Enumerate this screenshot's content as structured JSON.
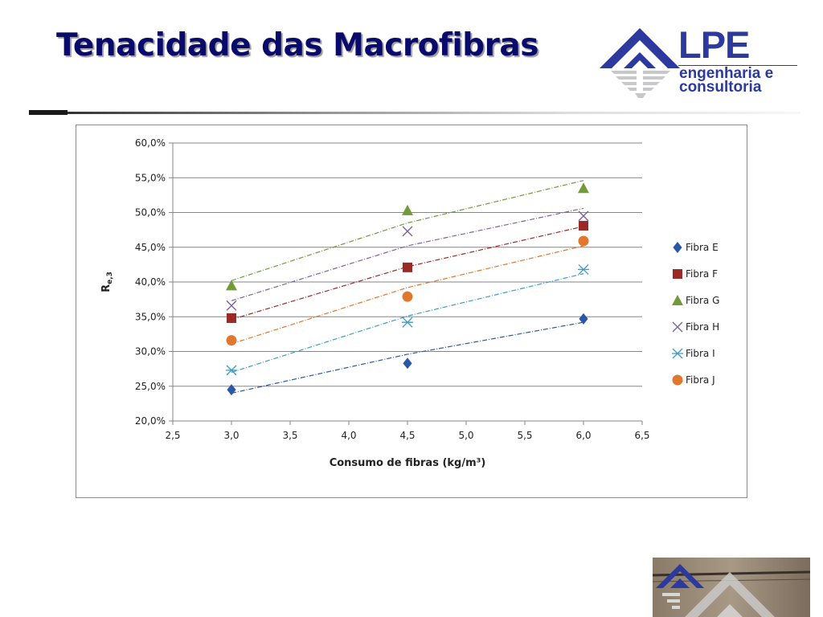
{
  "slide": {
    "title": "Tenacidade das Macrofibras"
  },
  "logo": {
    "brand": "LPE",
    "line1": "engenharia e",
    "line2": "consultoria"
  },
  "chart_data": {
    "type": "scatter",
    "xlabel": "Consumo de fibras (kg/m³)",
    "ylabel_main": "R",
    "ylabel_sub": "e,3",
    "xlim": [
      2.5,
      6.5
    ],
    "ylim": [
      0.2,
      0.6
    ],
    "xticks": [
      "2,5",
      "3,0",
      "3,5",
      "4,0",
      "4,5",
      "5,0",
      "5,5",
      "6,0",
      "6,5"
    ],
    "yticks": [
      "20,0%",
      "25,0%",
      "30,0%",
      "35,0%",
      "40,0%",
      "45,0%",
      "50,0%",
      "55,0%",
      "60,0%"
    ],
    "grid": "horizontal",
    "legend": "right",
    "trendline": "dashed",
    "x": [
      3.0,
      4.5,
      6.0
    ],
    "series": [
      {
        "name": "Fibra E",
        "marker": "diamond",
        "color": "#2a58a6",
        "values": [
          0.245,
          0.283,
          0.347
        ],
        "trend": [
          0.24,
          0.296,
          0.342
        ]
      },
      {
        "name": "Fibra F",
        "marker": "square",
        "color": "#9b2a26",
        "values": [
          0.348,
          0.421,
          0.481
        ],
        "trend": [
          0.346,
          0.422,
          0.48
        ]
      },
      {
        "name": "Fibra G",
        "marker": "triangle",
        "color": "#72993a",
        "values": [
          0.395,
          0.503,
          0.535
        ],
        "trend": [
          0.402,
          0.485,
          0.546
        ]
      },
      {
        "name": "Fibra H",
        "marker": "x",
        "color": "#7b62a0",
        "values": [
          0.366,
          0.473,
          0.495
        ],
        "trend": [
          0.373,
          0.452,
          0.506
        ]
      },
      {
        "name": "Fibra I",
        "marker": "star",
        "color": "#3d9cc4",
        "values": [
          0.273,
          0.342,
          0.418
        ],
        "trend": [
          0.27,
          0.351,
          0.412
        ]
      },
      {
        "name": "Fibra J",
        "marker": "circle",
        "color": "#e0772c",
        "values": [
          0.316,
          0.379,
          0.459
        ],
        "trend": [
          0.311,
          0.392,
          0.452
        ]
      }
    ]
  }
}
